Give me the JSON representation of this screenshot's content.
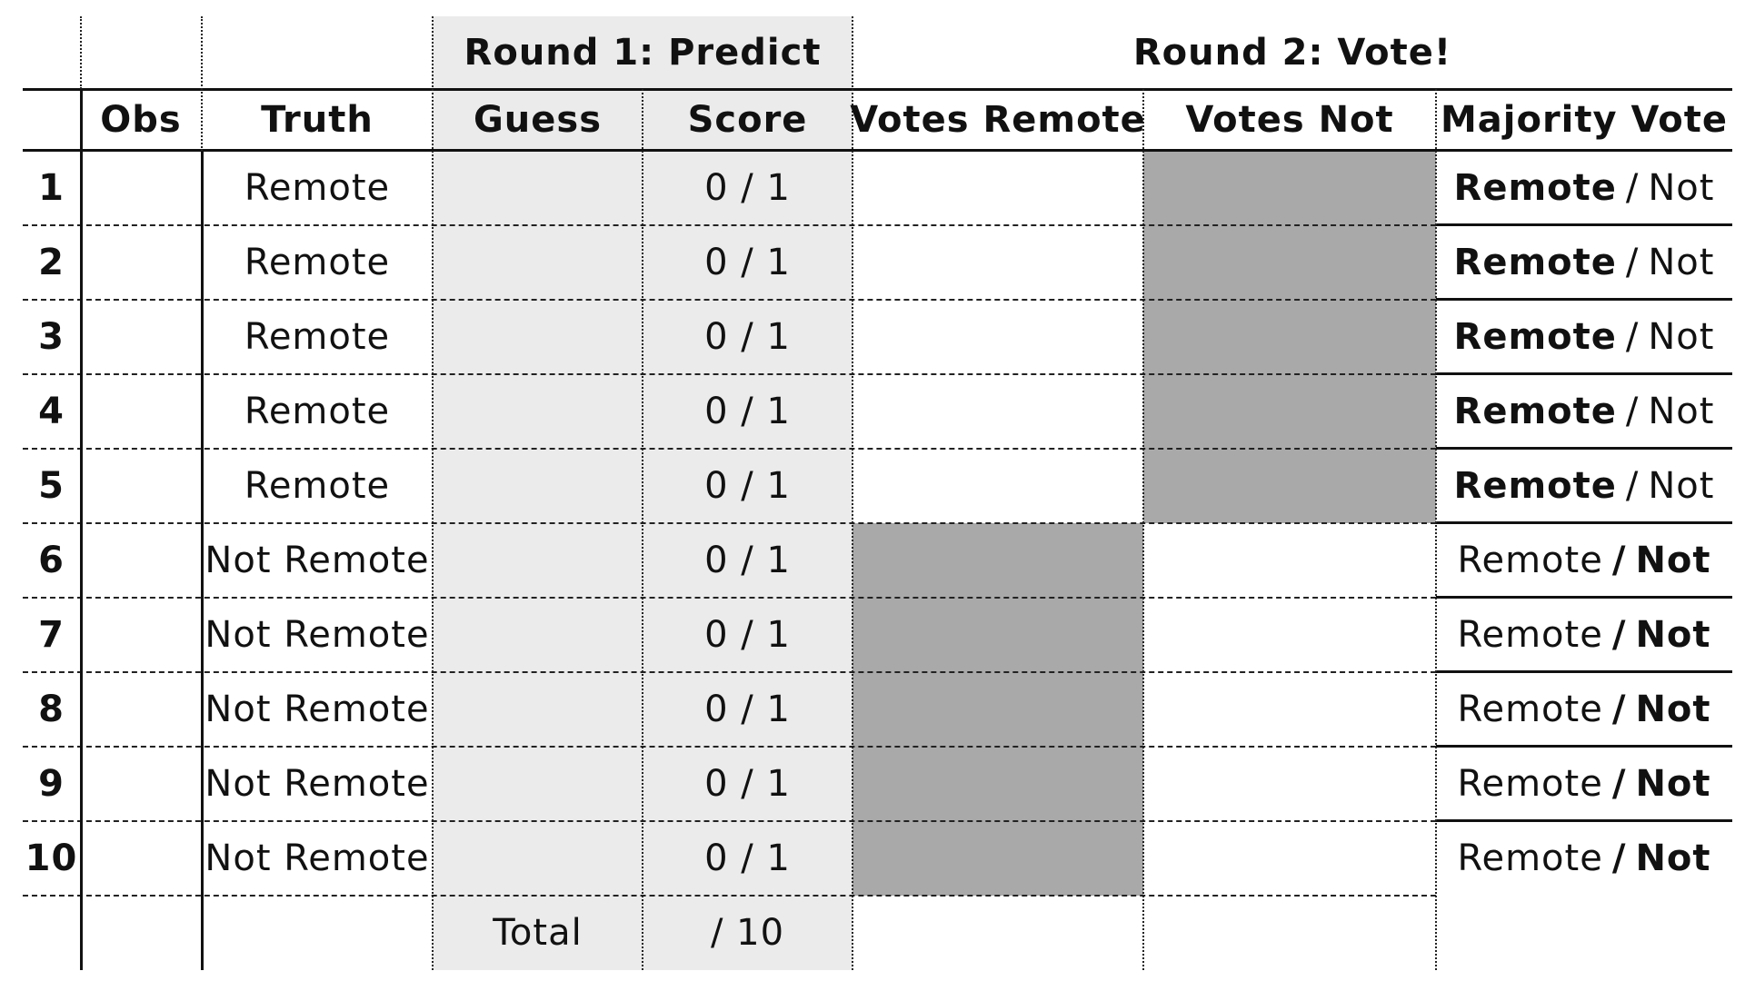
{
  "header": {
    "round1_title": "Round 1: Predict",
    "round2_title": "Round 2: Vote!"
  },
  "columns": {
    "obs": "Obs",
    "truth": "Truth",
    "guess": "Guess",
    "score": "Score",
    "votes_remote": "Votes Remote",
    "votes_not": "Votes Not",
    "majority_vote": "Majority Vote"
  },
  "rows": [
    {
      "num": "1",
      "truth": "Remote",
      "score": "0 / 1",
      "opt_a": "Remote",
      "sep": "/",
      "opt_b": "Not",
      "bold": "a",
      "shaded": "not"
    },
    {
      "num": "2",
      "truth": "Remote",
      "score": "0 / 1",
      "opt_a": "Remote",
      "sep": "/",
      "opt_b": "Not",
      "bold": "a",
      "shaded": "not"
    },
    {
      "num": "3",
      "truth": "Remote",
      "score": "0 / 1",
      "opt_a": "Remote",
      "sep": "/",
      "opt_b": "Not",
      "bold": "a",
      "shaded": "not"
    },
    {
      "num": "4",
      "truth": "Remote",
      "score": "0 / 1",
      "opt_a": "Remote",
      "sep": "/",
      "opt_b": "Not",
      "bold": "a",
      "shaded": "not"
    },
    {
      "num": "5",
      "truth": "Remote",
      "score": "0 / 1",
      "opt_a": "Remote",
      "sep": "/",
      "opt_b": "Not",
      "bold": "a",
      "shaded": "not"
    },
    {
      "num": "6",
      "truth": "Not Remote",
      "score": "0 / 1",
      "opt_a": "Remote",
      "sep": "/",
      "opt_b": "Not",
      "bold": "b",
      "shaded": "remote"
    },
    {
      "num": "7",
      "truth": "Not Remote",
      "score": "0 / 1",
      "opt_a": "Remote",
      "sep": "/",
      "opt_b": "Not",
      "bold": "b",
      "shaded": "remote"
    },
    {
      "num": "8",
      "truth": "Not Remote",
      "score": "0 / 1",
      "opt_a": "Remote",
      "sep": "/",
      "opt_b": "Not",
      "bold": "b",
      "shaded": "remote"
    },
    {
      "num": "9",
      "truth": "Not Remote",
      "score": "0 / 1",
      "opt_a": "Remote",
      "sep": "/",
      "opt_b": "Not",
      "bold": "b",
      "shaded": "remote"
    },
    {
      "num": "10",
      "truth": "Not Remote",
      "score": "0 / 1",
      "opt_a": "Remote",
      "sep": "/",
      "opt_b": "Not",
      "bold": "b",
      "shaded": "remote"
    }
  ],
  "total": {
    "label": "Total",
    "score": "/ 10"
  },
  "colors": {
    "round1_background": "#ebebeb",
    "vote_shade": "#a9a9a9"
  }
}
